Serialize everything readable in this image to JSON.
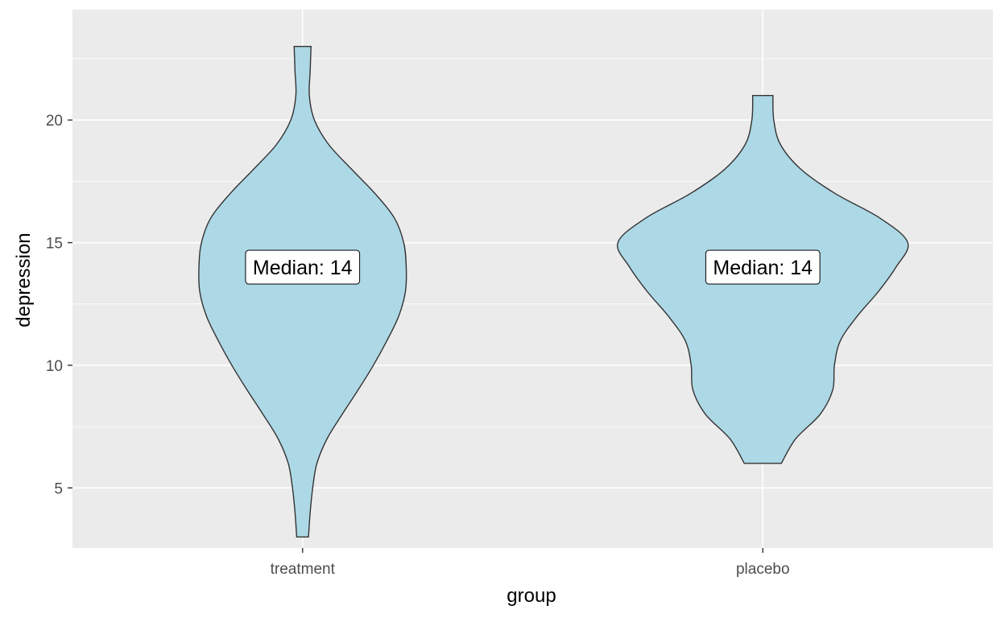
{
  "chart_data": {
    "type": "violin",
    "xlabel": "group",
    "ylabel": "depression",
    "categories": [
      "treatment",
      "placebo"
    ],
    "ylim": [
      2.55,
      24.5
    ],
    "yticks": [
      5,
      10,
      15,
      20
    ],
    "grid": true,
    "colors": {
      "panel": "#ebebeb",
      "grid": "#ffffff",
      "fill": "#add8e6",
      "outline": "#333333"
    },
    "violins": [
      {
        "group": "treatment",
        "y": [
          3,
          4,
          5,
          6,
          7,
          8,
          9,
          10,
          11,
          12,
          13,
          14,
          15,
          16,
          17,
          18,
          19,
          20,
          21,
          22,
          23
        ],
        "width": [
          0.07,
          0.09,
          0.12,
          0.17,
          0.29,
          0.47,
          0.66,
          0.84,
          1.0,
          1.14,
          1.22,
          1.23,
          1.2,
          1.09,
          0.86,
          0.58,
          0.31,
          0.14,
          0.08,
          0.09,
          0.1
        ]
      },
      {
        "group": "placebo",
        "y": [
          6,
          7,
          8,
          9,
          10,
          11,
          12,
          13,
          14,
          15,
          16,
          17,
          18,
          19,
          20,
          21
        ],
        "width": [
          0.22,
          0.39,
          0.68,
          0.83,
          0.85,
          0.92,
          1.12,
          1.37,
          1.58,
          1.72,
          1.39,
          0.86,
          0.45,
          0.21,
          0.13,
          0.12
        ]
      }
    ],
    "annotations": [
      {
        "group": "treatment",
        "y": 14,
        "text": "Median: 14"
      },
      {
        "group": "placebo",
        "y": 14,
        "text": "Median: 14"
      }
    ]
  }
}
